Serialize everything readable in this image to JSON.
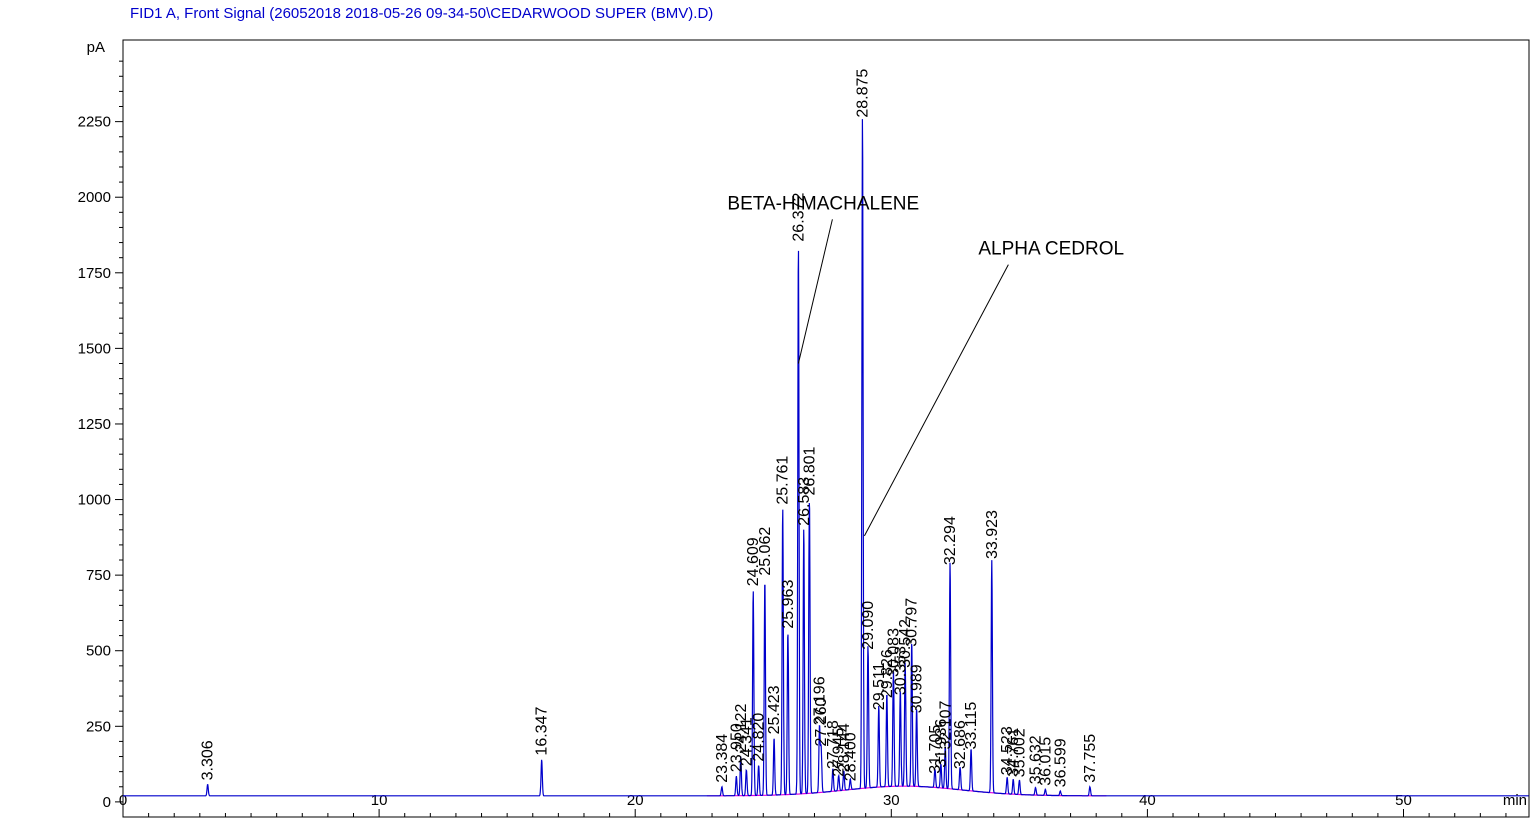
{
  "chart_data": {
    "type": "line",
    "title": "FID1 A, Front Signal (26052018 2018-05-26 09-34-50\\CEDARWOOD SUPER (BMV).D)",
    "xlabel": "min",
    "ylabel": "pA",
    "xlim": [
      0,
      54.9
    ],
    "ylim": [
      -50,
      2520
    ],
    "x_ticks": [
      0,
      10,
      20,
      30,
      40,
      50
    ],
    "y_ticks": [
      0,
      250,
      500,
      750,
      1000,
      1250,
      1500,
      1750,
      2000,
      2250
    ],
    "colors": {
      "signal": "#0000cc",
      "baseline": "#e000e0",
      "title": "#0000cc"
    },
    "baseline_level": 20,
    "peaks": [
      {
        "rt": 3.306,
        "h": 58,
        "label": "3.306"
      },
      {
        "rt": 16.347,
        "h": 140,
        "label": "16.347"
      },
      {
        "rt": 23.384,
        "h": 50,
        "label": "23.384"
      },
      {
        "rt": 23.95,
        "h": 85,
        "label": "23.950"
      },
      {
        "rt": 24.122,
        "h": 150,
        "label": "24.122"
      },
      {
        "rt": 24.341,
        "h": 105,
        "label": "24.341"
      },
      {
        "rt": 24.609,
        "h": 700,
        "label": "24.609"
      },
      {
        "rt": 24.82,
        "h": 120,
        "label": "24.820"
      },
      {
        "rt": 25.062,
        "h": 735,
        "label": "25.062"
      },
      {
        "rt": 25.423,
        "h": 210,
        "label": "25.423"
      },
      {
        "rt": 25.761,
        "h": 970,
        "label": "25.761"
      },
      {
        "rt": 25.963,
        "h": 560,
        "label": "25.963"
      },
      {
        "rt": 26.372,
        "h": 1840,
        "label": "26.372"
      },
      {
        "rt": 26.583,
        "h": 900,
        "label": "26.583"
      },
      {
        "rt": 26.801,
        "h": 1000,
        "label": "26.801"
      },
      {
        "rt": 27.196,
        "h": 240,
        "label": "27.196"
      },
      {
        "rt": 27.26,
        "h": 170,
        "label": "27.260"
      },
      {
        "rt": 27.718,
        "h": 95,
        "label": "27.718"
      },
      {
        "rt": 27.945,
        "h": 70,
        "label": "27.945"
      },
      {
        "rt": 28.144,
        "h": 85,
        "label": "28.144"
      },
      {
        "rt": 28.4,
        "h": 55,
        "label": "28.400"
      },
      {
        "rt": 28.875,
        "h": 2250,
        "label": "28.875"
      },
      {
        "rt": 29.09,
        "h": 490,
        "label": "29.090"
      },
      {
        "rt": 29.511,
        "h": 290,
        "label": "29.511"
      },
      {
        "rt": 29.826,
        "h": 330,
        "label": "29.826"
      },
      {
        "rt": 30.083,
        "h": 400,
        "label": "30.083"
      },
      {
        "rt": 30.353,
        "h": 340,
        "label": "30.353"
      },
      {
        "rt": 30.542,
        "h": 430,
        "label": "30.542"
      },
      {
        "rt": 30.797,
        "h": 500,
        "label": "30.797"
      },
      {
        "rt": 30.989,
        "h": 280,
        "label": "30.989"
      },
      {
        "rt": 31.705,
        "h": 80,
        "label": "31.705"
      },
      {
        "rt": 31.936,
        "h": 100,
        "label": "31.936"
      },
      {
        "rt": 32.107,
        "h": 160,
        "label": "32.107"
      },
      {
        "rt": 32.294,
        "h": 770,
        "label": "32.294"
      },
      {
        "rt": 32.686,
        "h": 95,
        "label": "32.686"
      },
      {
        "rt": 33.115,
        "h": 160,
        "label": "33.115"
      },
      {
        "rt": 33.923,
        "h": 790,
        "label": "33.923"
      },
      {
        "rt": 34.523,
        "h": 75,
        "label": "34.523"
      },
      {
        "rt": 34.761,
        "h": 70,
        "label": "34.761"
      },
      {
        "rt": 35.002,
        "h": 68,
        "label": "35.002"
      },
      {
        "rt": 35.632,
        "h": 45,
        "label": "35.632"
      },
      {
        "rt": 36.015,
        "h": 40,
        "label": "36.015"
      },
      {
        "rt": 36.599,
        "h": 35,
        "label": "36.599"
      },
      {
        "rt": 37.755,
        "h": 50,
        "label": "37.755"
      }
    ],
    "annotations": [
      {
        "text": "BETA-HIMACHALENE",
        "point_rt": 26.372,
        "point_h": 1450,
        "text_rt": 23.6,
        "text_h": 1960
      },
      {
        "text": "ALPHA CEDROL",
        "point_rt": 28.95,
        "point_h": 880,
        "text_rt": 33.4,
        "text_h": 1810
      }
    ]
  }
}
